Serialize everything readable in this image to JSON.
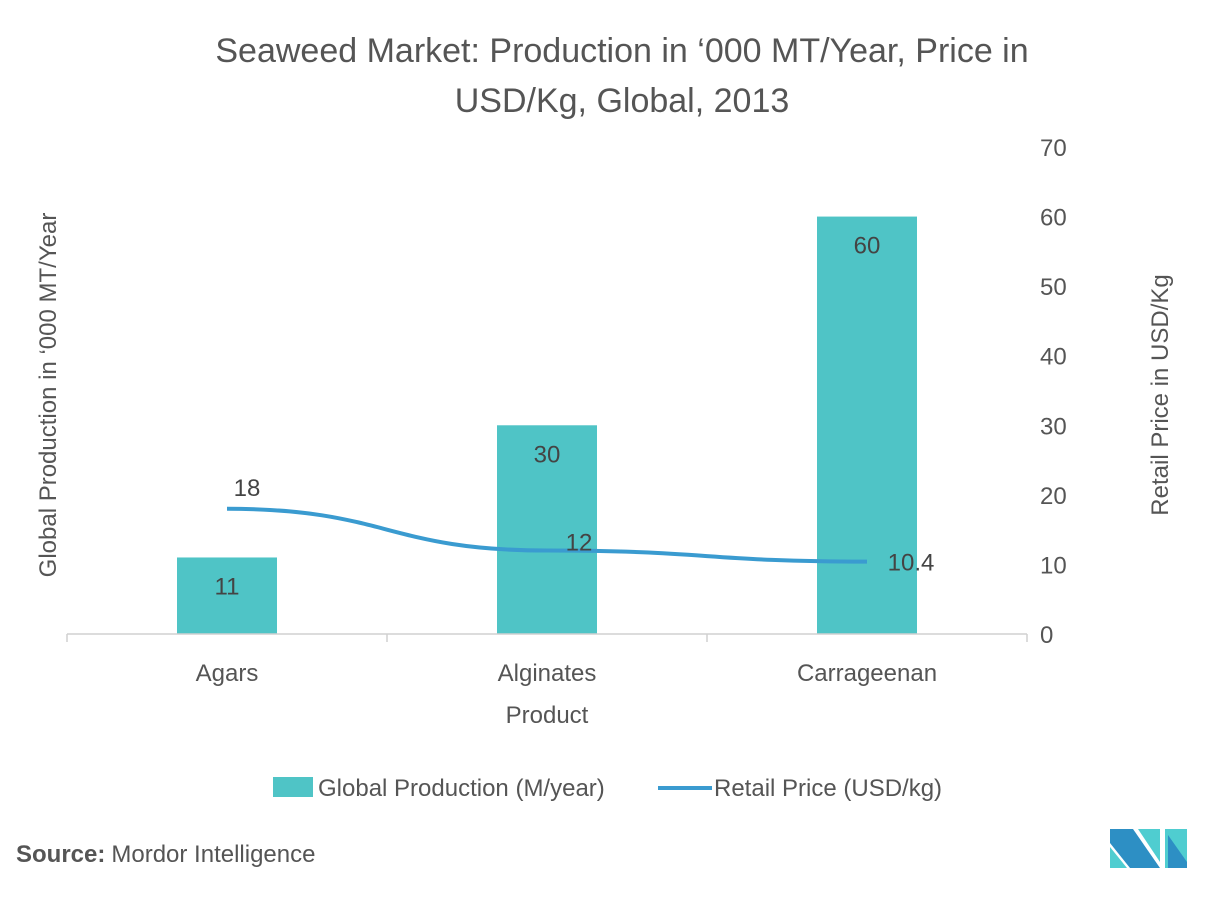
{
  "chart_data": {
    "type": "bar+line",
    "title_line1": "Seaweed Market: Production in ‘000 MT/Year, Price in",
    "title_line2": "USD/Kg, Global, 2013",
    "xlabel": "Product",
    "ylabel_left": "Global Production in ‘000 MT/Year",
    "ylabel_right": "Retail Price in USD/Kg",
    "categories": [
      "Agars",
      "Alginates",
      "Carrageenan"
    ],
    "ylim": [
      0,
      70
    ],
    "yticks": [
      "0",
      "10",
      "20",
      "30",
      "40",
      "50",
      "60",
      "70"
    ],
    "grid": false,
    "legend_position": "bottom",
    "series": [
      {
        "name": "Global Production (M/year)",
        "kind": "bar",
        "color": "#4fc4c6",
        "values": [
          11,
          30,
          60
        ],
        "labels": [
          "11",
          "30",
          "60"
        ]
      },
      {
        "name": "Retail Price (USD/kg)",
        "kind": "line",
        "color": "#3a9bd0",
        "values": [
          18,
          12,
          10.4
        ],
        "labels": [
          "18",
          "12",
          "10.4"
        ]
      }
    ]
  },
  "footer": {
    "source_label": "Source:",
    "source_text": "Mordor Intelligence"
  },
  "logo": {
    "colors": [
      "#2d8fc4",
      "#4fcdd0"
    ]
  }
}
